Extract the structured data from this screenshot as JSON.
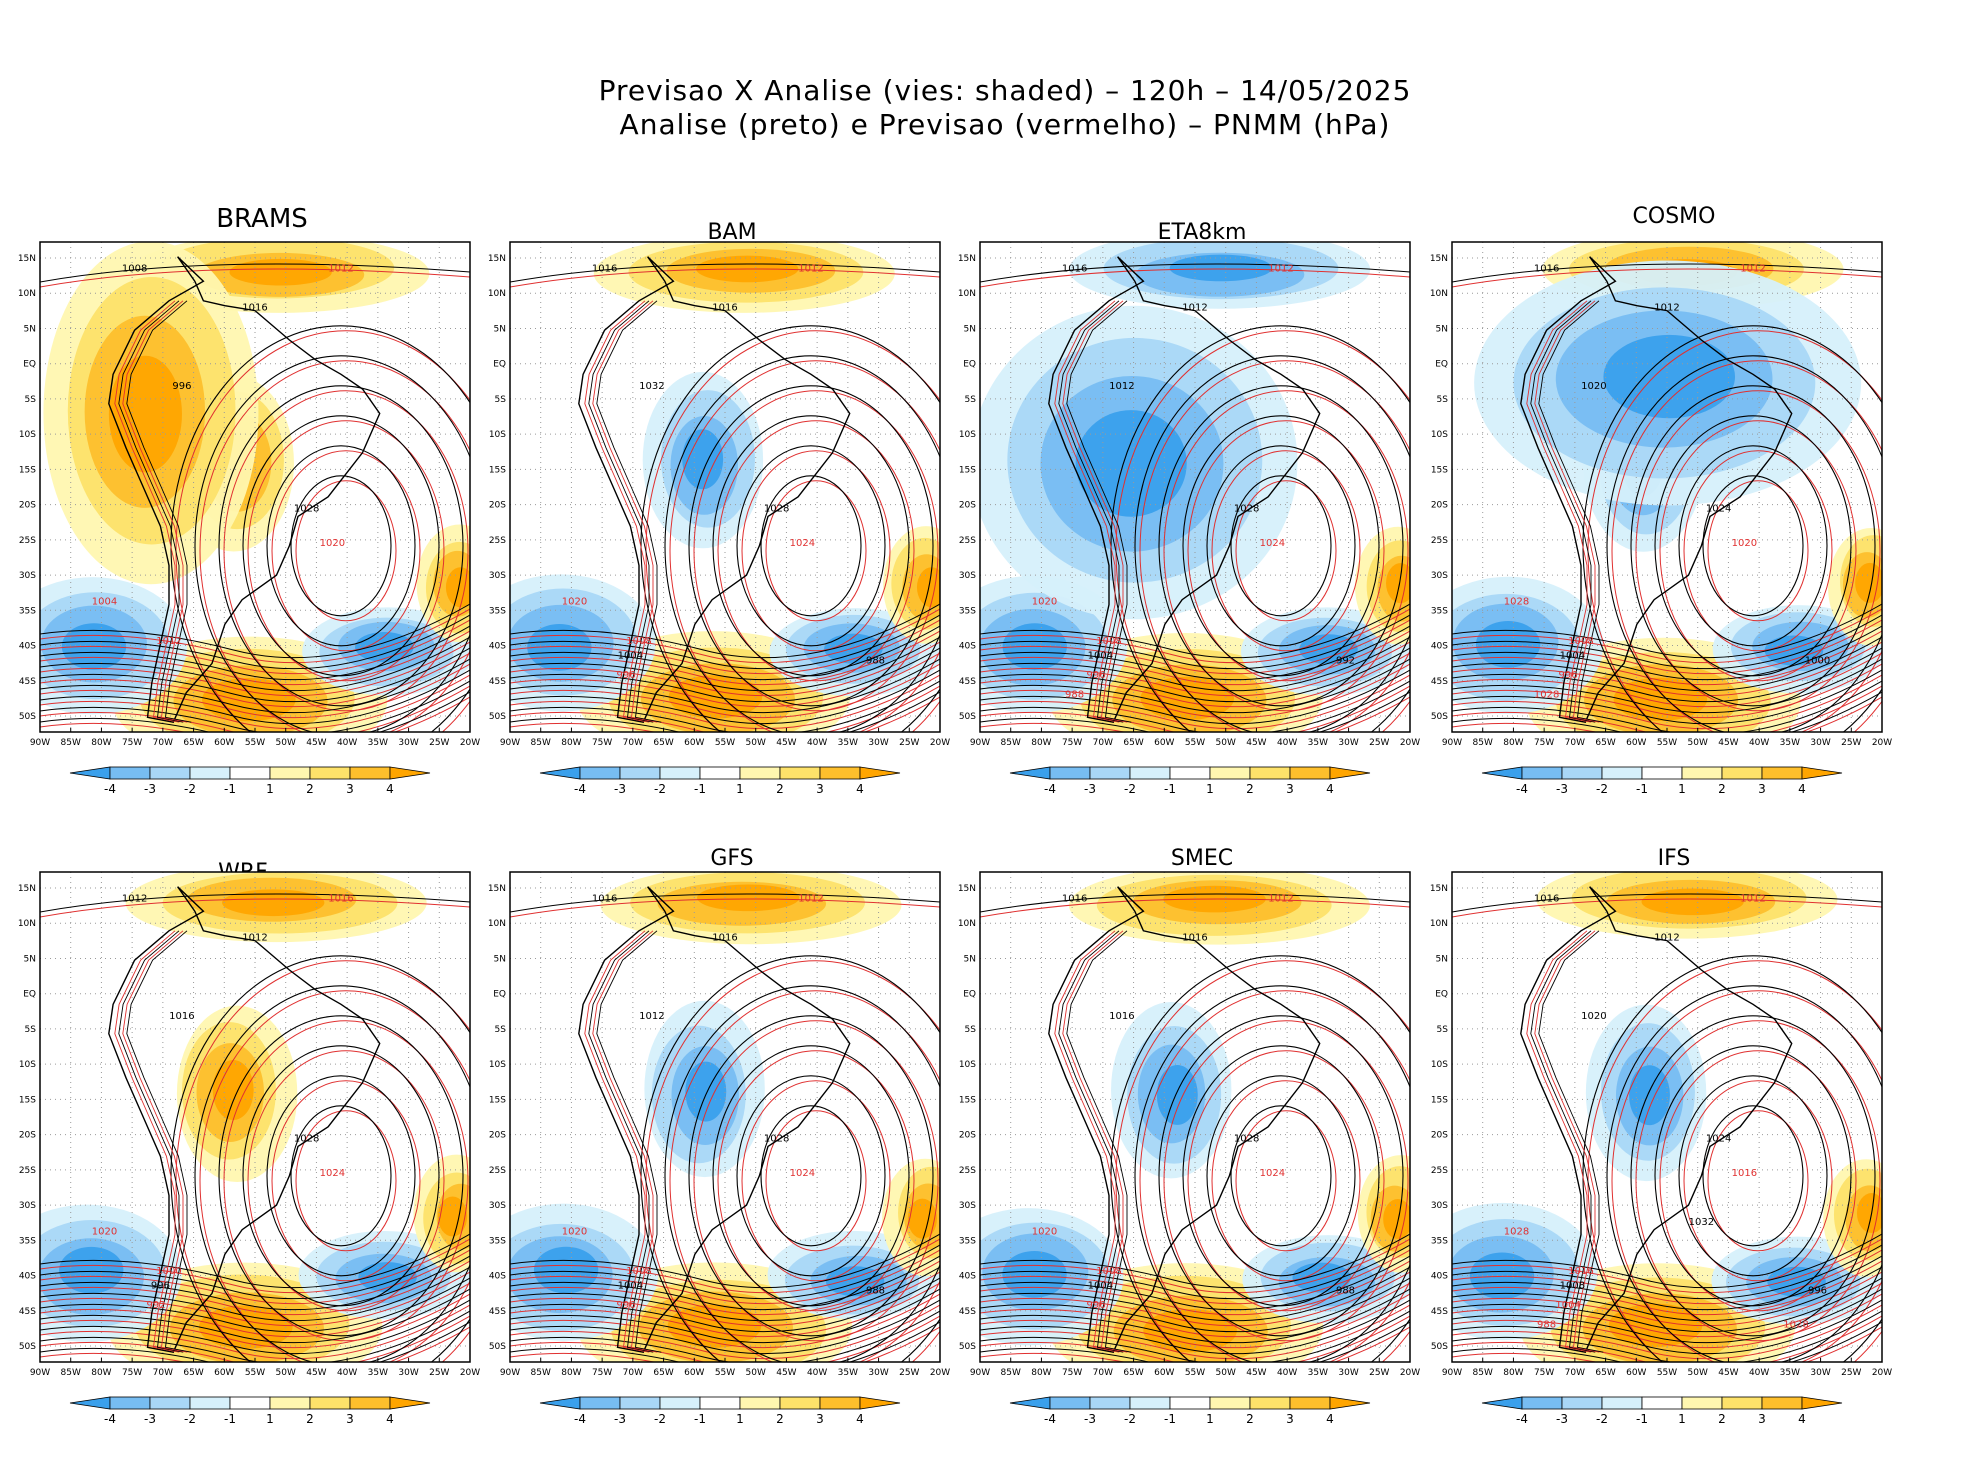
{
  "header": {
    "title_line1": "Previsao X Analise (vies: shaded) – 120h – 14/05/2025",
    "title_line2": "Analise (preto) e Previsao (vermelho) – PNMM (hPa)"
  },
  "colors": {
    "analysis_contour": "#000000",
    "forecast_contour": "#e03030",
    "bias_neg4": "#3aa0ec",
    "bias_neg3": "#77bdf2",
    "bias_neg2": "#a9d7f7",
    "bias_neg1": "#d6f0fb",
    "bias_zero": "#ffffff",
    "bias_pos1": "#fff7b0",
    "bias_pos2": "#fde26a",
    "bias_pos3": "#fdbf2c",
    "bias_pos4": "#ffa500"
  },
  "axes": {
    "lon_ticks": [
      "90W",
      "85W",
      "80W",
      "75W",
      "70W",
      "65W",
      "60W",
      "55W",
      "50W",
      "45W",
      "40W",
      "35W",
      "30W",
      "25W",
      "20W"
    ],
    "lat_ticks": [
      "15N",
      "10N",
      "5N",
      "EQ",
      "5S",
      "10S",
      "15S",
      "20S",
      "25S",
      "30S",
      "35S",
      "40S",
      "45S",
      "50S"
    ]
  },
  "colorbar": {
    "labels": [
      "-4",
      "-3",
      "-2",
      "-1",
      "1",
      "2",
      "3",
      "4"
    ]
  },
  "panels": [
    {
      "model": "BRAMS",
      "labels": [
        "1008",
        "1012",
        "1016",
        "1020",
        "1028",
        "1004",
        "996",
        "1012"
      ]
    },
    {
      "model": "BAM",
      "labels": [
        "1016",
        "1012",
        "1016",
        "1024",
        "1028",
        "1020",
        "1032",
        "1008",
        "1004",
        "996",
        "988"
      ]
    },
    {
      "model": "ETA8km",
      "labels": [
        "1016",
        "1012",
        "1012",
        "1024",
        "1028",
        "1020",
        "1012",
        "1008",
        "1004",
        "996",
        "992",
        "988"
      ]
    },
    {
      "model": "COSMO",
      "labels": [
        "1016",
        "1012",
        "1012",
        "1020",
        "1024",
        "1028",
        "1020",
        "1008",
        "1004",
        "996",
        "1000",
        "1028"
      ]
    },
    {
      "model": "WRF",
      "labels": [
        "1012",
        "1016",
        "1012",
        "1024",
        "1028",
        "1020",
        "1016",
        "1000",
        "996",
        "992"
      ]
    },
    {
      "model": "GFS",
      "labels": [
        "1016",
        "1012",
        "1016",
        "1024",
        "1028",
        "1020",
        "1012",
        "1008",
        "1004",
        "996",
        "988"
      ]
    },
    {
      "model": "SMEC",
      "labels": [
        "1016",
        "1012",
        "1016",
        "1024",
        "1028",
        "1020",
        "1016",
        "1008",
        "1004",
        "996",
        "988"
      ]
    },
    {
      "model": "IFS",
      "labels": [
        "1016",
        "1012",
        "1012",
        "1016",
        "1024",
        "1028",
        "1020",
        "1016",
        "1008",
        "1004",
        "996",
        "988",
        "1032",
        "1028"
      ]
    }
  ]
}
